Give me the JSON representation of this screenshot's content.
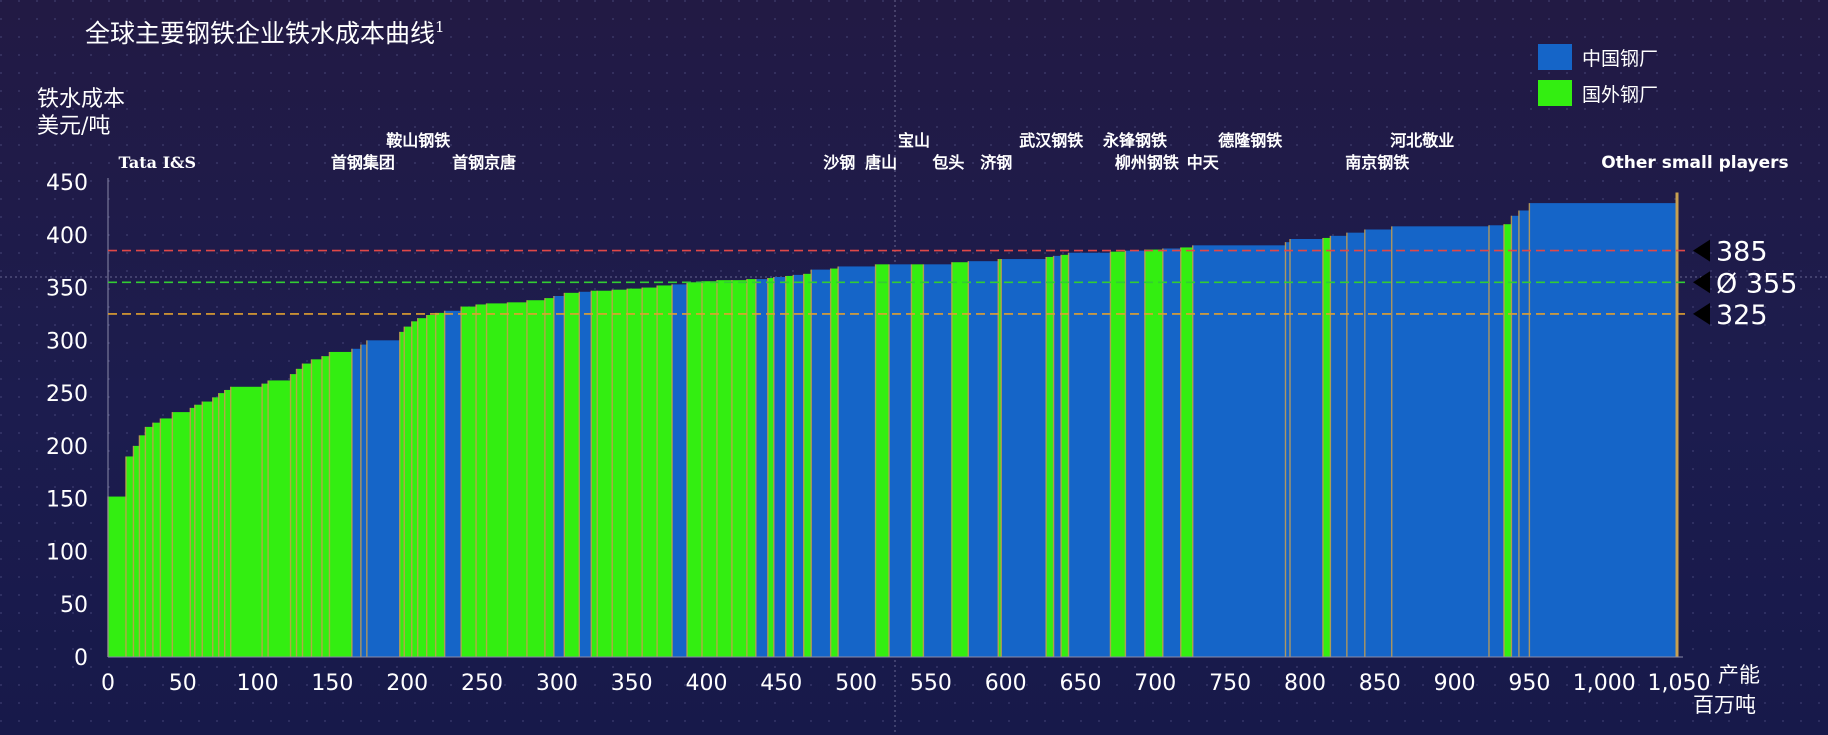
{
  "chart_data": {
    "type": "bar",
    "title": "全球主要钢铁企业铁水成本曲线",
    "title_superscript": "1",
    "ylabel_line1": "铁水成本",
    "ylabel_line2": "美元/吨",
    "xlabel_line1": "产能",
    "xlabel_line2": "百万吨",
    "xlim": [
      0,
      1050
    ],
    "ylim": [
      0,
      450
    ],
    "x_ticks": [
      0,
      50,
      100,
      150,
      200,
      250,
      300,
      350,
      400,
      450,
      500,
      550,
      600,
      650,
      700,
      750,
      800,
      850,
      900,
      950,
      1000,
      1050
    ],
    "x_tick_labels": [
      "0",
      "50",
      "100",
      "150",
      "200",
      "250",
      "300",
      "350",
      "400",
      "450",
      "500",
      "550",
      "600",
      "650",
      "700",
      "750",
      "800",
      "850",
      "900",
      "950",
      "1,000",
      "1,050"
    ],
    "y_ticks": [
      0,
      50,
      100,
      150,
      200,
      250,
      300,
      350,
      400,
      450
    ],
    "y_tick_labels": [
      "0",
      "50",
      "100",
      "150",
      "200",
      "250",
      "300",
      "350",
      "400",
      "450"
    ],
    "legend": {
      "position": "top-right",
      "entries": [
        {
          "label": "中国钢厂",
          "color": "#1565c8"
        },
        {
          "label": "国外钢厂",
          "color": "#33ee11"
        }
      ]
    },
    "reference_lines": [
      {
        "value": 385,
        "label": "385",
        "color": "#e04848"
      },
      {
        "value": 355,
        "label": "Ø 355",
        "color": "#33cc33"
      },
      {
        "value": 325,
        "label": "325",
        "color": "#e0a030"
      }
    ],
    "separator_color": "#c8a050",
    "segments": [
      {
        "x0": 0,
        "x1": 12,
        "y": 152,
        "g": "f"
      },
      {
        "x0": 12,
        "x1": 17,
        "y": 190,
        "g": "f"
      },
      {
        "x0": 17,
        "x1": 21,
        "y": 200,
        "g": "f"
      },
      {
        "x0": 21,
        "x1": 25,
        "y": 210,
        "g": "f"
      },
      {
        "x0": 25,
        "x1": 30,
        "y": 218,
        "g": "f"
      },
      {
        "x0": 30,
        "x1": 35,
        "y": 222,
        "g": "f"
      },
      {
        "x0": 35,
        "x1": 43,
        "y": 226,
        "g": "f"
      },
      {
        "x0": 43,
        "x1": 55,
        "y": 232,
        "g": "f"
      },
      {
        "x0": 55,
        "x1": 58,
        "y": 236,
        "g": "f"
      },
      {
        "x0": 58,
        "x1": 63,
        "y": 239,
        "g": "f"
      },
      {
        "x0": 63,
        "x1": 70,
        "y": 242,
        "g": "f"
      },
      {
        "x0": 70,
        "x1": 74,
        "y": 246,
        "g": "f"
      },
      {
        "x0": 74,
        "x1": 78,
        "y": 250,
        "g": "f"
      },
      {
        "x0": 78,
        "x1": 82,
        "y": 253,
        "g": "f"
      },
      {
        "x0": 82,
        "x1": 103,
        "y": 256,
        "g": "f"
      },
      {
        "x0": 103,
        "x1": 107,
        "y": 259,
        "g": "f"
      },
      {
        "x0": 107,
        "x1": 122,
        "y": 262,
        "g": "f"
      },
      {
        "x0": 122,
        "x1": 126,
        "y": 268,
        "g": "f"
      },
      {
        "x0": 126,
        "x1": 130,
        "y": 273,
        "g": "f"
      },
      {
        "x0": 130,
        "x1": 136,
        "y": 278,
        "g": "f"
      },
      {
        "x0": 136,
        "x1": 143,
        "y": 282,
        "g": "f"
      },
      {
        "x0": 143,
        "x1": 148,
        "y": 285,
        "g": "f"
      },
      {
        "x0": 148,
        "x1": 163,
        "y": 289,
        "g": "f"
      },
      {
        "x0": 163,
        "x1": 169,
        "y": 292,
        "g": "c"
      },
      {
        "x0": 169,
        "x1": 173,
        "y": 296,
        "g": "c"
      },
      {
        "x0": 173,
        "x1": 195,
        "y": 300,
        "g": "c"
      },
      {
        "x0": 195,
        "x1": 198,
        "y": 308,
        "g": "f"
      },
      {
        "x0": 198,
        "x1": 203,
        "y": 313,
        "g": "f"
      },
      {
        "x0": 203,
        "x1": 207,
        "y": 318,
        "g": "f"
      },
      {
        "x0": 207,
        "x1": 213,
        "y": 321,
        "g": "f"
      },
      {
        "x0": 213,
        "x1": 219,
        "y": 324,
        "g": "f"
      },
      {
        "x0": 219,
        "x1": 225,
        "y": 326,
        "g": "f"
      },
      {
        "x0": 225,
        "x1": 236,
        "y": 328,
        "g": "c"
      },
      {
        "x0": 236,
        "x1": 246,
        "y": 332,
        "g": "f"
      },
      {
        "x0": 246,
        "x1": 253,
        "y": 334,
        "g": "f"
      },
      {
        "x0": 253,
        "x1": 267,
        "y": 335,
        "g": "f"
      },
      {
        "x0": 267,
        "x1": 280,
        "y": 336,
        "g": "f"
      },
      {
        "x0": 280,
        "x1": 292,
        "y": 338,
        "g": "f"
      },
      {
        "x0": 292,
        "x1": 298,
        "y": 340,
        "g": "f"
      },
      {
        "x0": 298,
        "x1": 305,
        "y": 342,
        "g": "c"
      },
      {
        "x0": 305,
        "x1": 315,
        "y": 345,
        "g": "f"
      },
      {
        "x0": 315,
        "x1": 323,
        "y": 346,
        "g": "c"
      },
      {
        "x0": 323,
        "x1": 327,
        "y": 347,
        "g": "f"
      },
      {
        "x0": 327,
        "x1": 337,
        "y": 347,
        "g": "f"
      },
      {
        "x0": 337,
        "x1": 347,
        "y": 348,
        "g": "f"
      },
      {
        "x0": 347,
        "x1": 357,
        "y": 349,
        "g": "f"
      },
      {
        "x0": 357,
        "x1": 367,
        "y": 350,
        "g": "f"
      },
      {
        "x0": 367,
        "x1": 377,
        "y": 352,
        "g": "f"
      },
      {
        "x0": 377,
        "x1": 387,
        "y": 353,
        "g": "c"
      },
      {
        "x0": 387,
        "x1": 397,
        "y": 355,
        "g": "f"
      },
      {
        "x0": 397,
        "x1": 407,
        "y": 356,
        "g": "f"
      },
      {
        "x0": 407,
        "x1": 417,
        "y": 357,
        "g": "f"
      },
      {
        "x0": 417,
        "x1": 427,
        "y": 357,
        "g": "f"
      },
      {
        "x0": 427,
        "x1": 433,
        "y": 358,
        "g": "f"
      },
      {
        "x0": 433,
        "x1": 441,
        "y": 358,
        "g": "c"
      },
      {
        "x0": 441,
        "x1": 445,
        "y": 359,
        "g": "f"
      },
      {
        "x0": 445,
        "x1": 453,
        "y": 360,
        "g": "c"
      },
      {
        "x0": 453,
        "x1": 458,
        "y": 361,
        "g": "f"
      },
      {
        "x0": 458,
        "x1": 465,
        "y": 362,
        "g": "c"
      },
      {
        "x0": 465,
        "x1": 470,
        "y": 363,
        "g": "f"
      },
      {
        "x0": 470,
        "x1": 483,
        "y": 367,
        "g": "c"
      },
      {
        "x0": 483,
        "x1": 488,
        "y": 368,
        "g": "f"
      },
      {
        "x0": 488,
        "x1": 513,
        "y": 370,
        "g": "c"
      },
      {
        "x0": 513,
        "x1": 522,
        "y": 372,
        "g": "f"
      },
      {
        "x0": 522,
        "x1": 537,
        "y": 372,
        "g": "c"
      },
      {
        "x0": 537,
        "x1": 545,
        "y": 372,
        "g": "f"
      },
      {
        "x0": 545,
        "x1": 564,
        "y": 372,
        "g": "c"
      },
      {
        "x0": 564,
        "x1": 575,
        "y": 374,
        "g": "f"
      },
      {
        "x0": 575,
        "x1": 595,
        "y": 375,
        "g": "c"
      },
      {
        "x0": 595,
        "x1": 597,
        "y": 377,
        "g": "f"
      },
      {
        "x0": 597,
        "x1": 627,
        "y": 377,
        "g": "c"
      },
      {
        "x0": 627,
        "x1": 632,
        "y": 379,
        "g": "f"
      },
      {
        "x0": 632,
        "x1": 637,
        "y": 380,
        "g": "c"
      },
      {
        "x0": 637,
        "x1": 642,
        "y": 381,
        "g": "f"
      },
      {
        "x0": 642,
        "x1": 670,
        "y": 383,
        "g": "c"
      },
      {
        "x0": 670,
        "x1": 680,
        "y": 384,
        "g": "f"
      },
      {
        "x0": 680,
        "x1": 693,
        "y": 385,
        "g": "c"
      },
      {
        "x0": 693,
        "x1": 705,
        "y": 386,
        "g": "f"
      },
      {
        "x0": 705,
        "x1": 717,
        "y": 387,
        "g": "c"
      },
      {
        "x0": 717,
        "x1": 725,
        "y": 388,
        "g": "f"
      },
      {
        "x0": 725,
        "x1": 787,
        "y": 390,
        "g": "c"
      },
      {
        "x0": 787,
        "x1": 790,
        "y": 393,
        "g": "c"
      },
      {
        "x0": 790,
        "x1": 812,
        "y": 396,
        "g": "c"
      },
      {
        "x0": 812,
        "x1": 817,
        "y": 397,
        "g": "f"
      },
      {
        "x0": 817,
        "x1": 828,
        "y": 399,
        "g": "c"
      },
      {
        "x0": 828,
        "x1": 840,
        "y": 402,
        "g": "c"
      },
      {
        "x0": 840,
        "x1": 858,
        "y": 405,
        "g": "c"
      },
      {
        "x0": 858,
        "x1": 923,
        "y": 408,
        "g": "c"
      },
      {
        "x0": 923,
        "x1": 933,
        "y": 409,
        "g": "c"
      },
      {
        "x0": 933,
        "x1": 938,
        "y": 410,
        "g": "f"
      },
      {
        "x0": 938,
        "x1": 943,
        "y": 418,
        "g": "c"
      },
      {
        "x0": 943,
        "x1": 950,
        "y": 423,
        "g": "c"
      },
      {
        "x0": 950,
        "x1": 1048,
        "y": 430,
        "g": "c"
      }
    ],
    "annotations": [
      {
        "text": "Tata I&S",
        "x": 7,
        "row": 2,
        "font": "serif"
      },
      {
        "text": "首钢集团",
        "x": 149,
        "row": 2,
        "font": "serif"
      },
      {
        "text": "鞍山钢铁",
        "x": 186,
        "row": 1,
        "font": "serif"
      },
      {
        "text": "首钢京唐",
        "x": 230,
        "row": 2,
        "font": "serif"
      },
      {
        "text": "沙钢",
        "x": 478,
        "row": 2,
        "font": "serif"
      },
      {
        "text": "唐山",
        "x": 506,
        "row": 2,
        "font": "serif"
      },
      {
        "text": "宝山",
        "x": 528,
        "row": 1,
        "font": "serif"
      },
      {
        "text": "包头",
        "x": 551,
        "row": 2,
        "font": "serif"
      },
      {
        "text": "济钢",
        "x": 583,
        "row": 2,
        "font": "serif"
      },
      {
        "text": "武汉钢铁",
        "x": 609,
        "row": 1,
        "font": "serif"
      },
      {
        "text": "永锋钢铁",
        "x": 665,
        "row": 1,
        "font": "serif"
      },
      {
        "text": "柳州钢铁",
        "x": 673,
        "row": 2,
        "font": "serif"
      },
      {
        "text": "中天",
        "x": 721,
        "row": 2,
        "font": "serif"
      },
      {
        "text": "德隆钢铁",
        "x": 742,
        "row": 1,
        "font": "serif"
      },
      {
        "text": "南京钢铁",
        "x": 827,
        "row": 2,
        "font": "serif"
      },
      {
        "text": "河北敬业",
        "x": 857,
        "row": 1,
        "font": "serif"
      },
      {
        "text": "Other small players",
        "x": 998,
        "row": 2,
        "font": "sans"
      }
    ]
  }
}
